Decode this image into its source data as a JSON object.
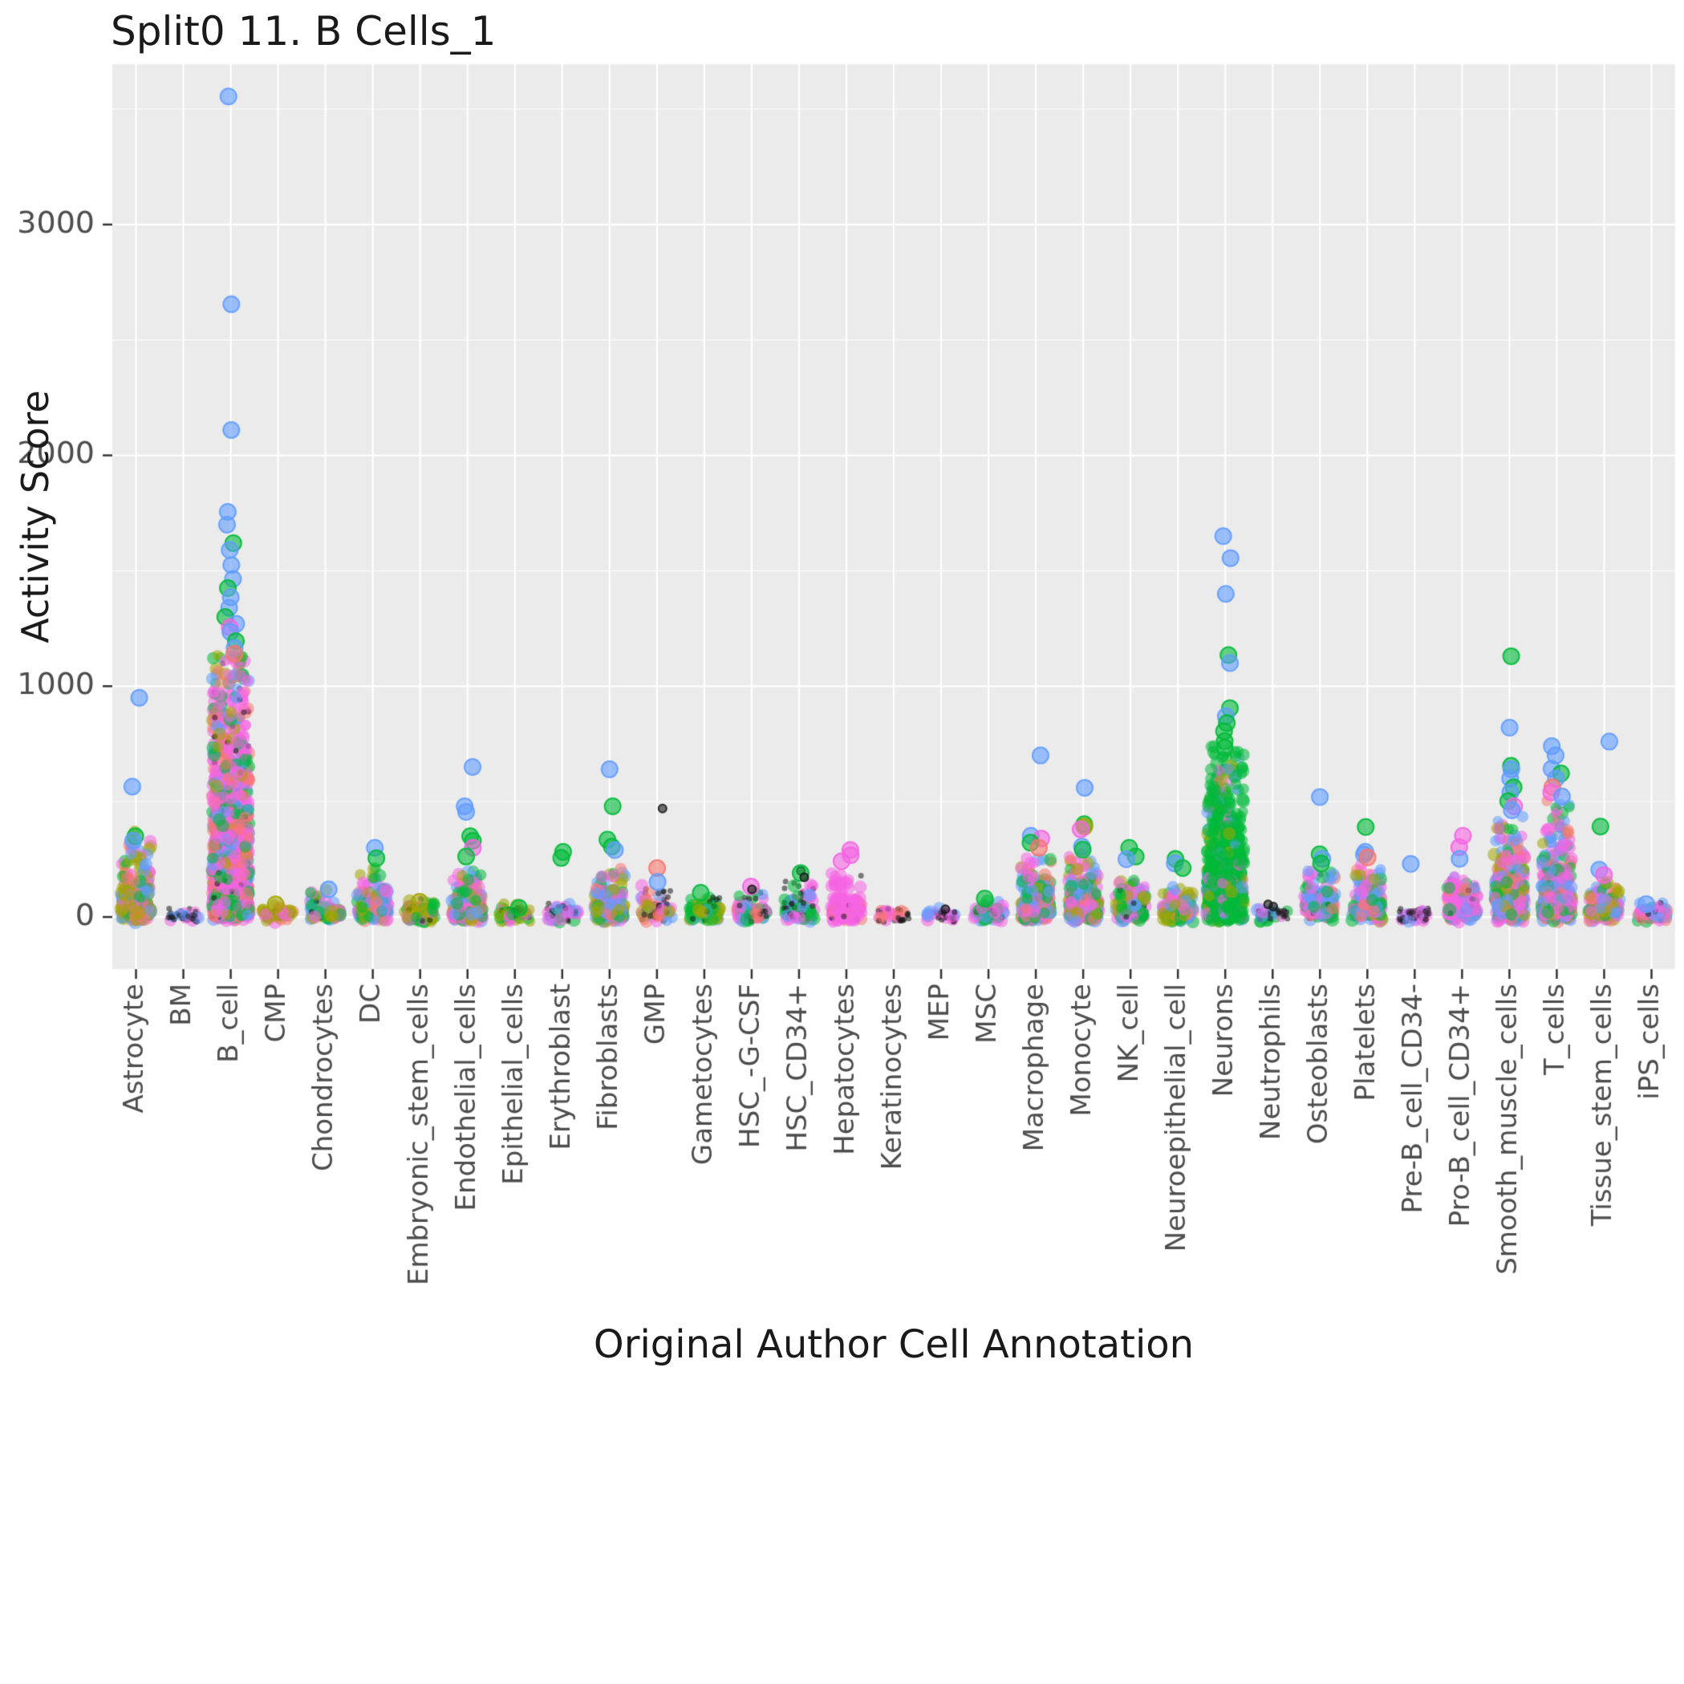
{
  "title": "Split0 11. B Cells_1",
  "x_axis_title": "Original Author Cell Annotation",
  "y_axis_title": "Activity Score",
  "colors": {
    "panel_bg": "#EBEBEB",
    "grid": "#FFFFFF",
    "axis_text": "#4D4D4D",
    "title_text": "#1A1A1A",
    "tick_mark": "#333333"
  },
  "chart_data": {
    "type": "scatter",
    "subtype": "jitter-strip",
    "title": "Split0 11. B Cells_1",
    "xlabel": "Original Author Cell Annotation",
    "ylabel": "Activity Score",
    "ylim": [
      -150,
      3700
    ],
    "yticks": [
      0,
      1000,
      2000,
      3000
    ],
    "ytick_labels": [
      "0",
      "1000",
      "2000",
      "3000"
    ],
    "yminor": [
      500,
      1500,
      2500,
      3500
    ],
    "grid": true,
    "legend": "none",
    "background": "#EBEBEB",
    "alpha": 0.55,
    "palette": {
      "salmon": "#F8766D",
      "olive": "#A3A500",
      "green": "#00BA38",
      "blue": "#619CFF",
      "magenta": "#F564E3",
      "dark": "#1A1A1A"
    },
    "categories": [
      {
        "label": "Astrocyte",
        "n": 230,
        "scale": 75,
        "max": 360,
        "colors": {
          "olive": 0.38,
          "blue": 0.22,
          "magenta": 0.16,
          "green": 0.12,
          "salmon": 0.12
        },
        "outliers": [
          [
            950,
            "blue"
          ],
          [
            565,
            "blue"
          ],
          [
            350,
            "green"
          ],
          [
            330,
            "blue"
          ]
        ]
      },
      {
        "label": "BM",
        "n": 45,
        "scale": 7,
        "max": 22,
        "colors": {
          "dark": 0.8,
          "magenta": 0.12,
          "blue": 0.08
        },
        "outliers": []
      },
      {
        "label": "B_cell",
        "n": 1250,
        "scale": 300,
        "max": 1130,
        "colors": {
          "magenta": 0.42,
          "salmon": 0.16,
          "green": 0.2,
          "blue": 0.13,
          "olive": 0.05,
          "dark": 0.04
        },
        "outliers": [
          [
            3555,
            "blue"
          ],
          [
            2655,
            "blue"
          ],
          [
            2110,
            "blue"
          ],
          [
            1755,
            "blue"
          ],
          [
            1700,
            "blue"
          ],
          [
            1620,
            "green"
          ],
          [
            1590,
            "blue"
          ],
          [
            1525,
            "blue"
          ],
          [
            1465,
            "blue"
          ],
          [
            1425,
            "green"
          ],
          [
            1385,
            "blue"
          ],
          [
            1340,
            "blue"
          ],
          [
            1300,
            "green"
          ],
          [
            1270,
            "blue"
          ],
          [
            1255,
            "magenta"
          ],
          [
            1235,
            "blue"
          ],
          [
            1195,
            "green"
          ],
          [
            1165,
            "blue"
          ],
          [
            1140,
            "salmon"
          ]
        ]
      },
      {
        "label": "CMP",
        "n": 55,
        "scale": 14,
        "max": 42,
        "colors": {
          "olive": 0.55,
          "dark": 0.2,
          "salmon": 0.12,
          "magenta": 0.13
        },
        "outliers": [
          [
            55,
            "olive"
          ]
        ]
      },
      {
        "label": "Chondrocytes",
        "n": 95,
        "scale": 32,
        "max": 105,
        "colors": {
          "olive": 0.28,
          "green": 0.2,
          "blue": 0.2,
          "magenta": 0.2,
          "dark": 0.12
        },
        "outliers": [
          [
            120,
            "blue"
          ]
        ]
      },
      {
        "label": "DC",
        "n": 130,
        "scale": 55,
        "max": 210,
        "colors": {
          "blue": 0.3,
          "green": 0.24,
          "magenta": 0.2,
          "olive": 0.16,
          "salmon": 0.1
        },
        "outliers": [
          [
            300,
            "blue"
          ],
          [
            255,
            "green"
          ]
        ]
      },
      {
        "label": "Embryonic_stem_cells",
        "n": 110,
        "scale": 18,
        "max": 58,
        "colors": {
          "olive": 0.5,
          "green": 0.24,
          "dark": 0.14,
          "magenta": 0.12
        },
        "outliers": [
          [
            66,
            "olive"
          ]
        ]
      },
      {
        "label": "Endothelial_cells",
        "n": 160,
        "scale": 48,
        "max": 190,
        "colors": {
          "magenta": 0.3,
          "blue": 0.24,
          "green": 0.2,
          "salmon": 0.16,
          "olive": 0.1
        },
        "outliers": [
          [
            650,
            "blue"
          ],
          [
            480,
            "blue"
          ],
          [
            455,
            "blue"
          ],
          [
            350,
            "green"
          ],
          [
            330,
            "green"
          ],
          [
            300,
            "magenta"
          ],
          [
            262,
            "green"
          ]
        ]
      },
      {
        "label": "Epithelial_cells",
        "n": 65,
        "scale": 11,
        "max": 34,
        "colors": {
          "green": 0.4,
          "dark": 0.28,
          "olive": 0.2,
          "magenta": 0.12
        },
        "outliers": [
          [
            40,
            "green"
          ]
        ]
      },
      {
        "label": "Erythroblast",
        "n": 75,
        "scale": 14,
        "max": 46,
        "colors": {
          "dark": 0.38,
          "magenta": 0.22,
          "green": 0.2,
          "blue": 0.2
        },
        "outliers": [
          [
            282,
            "green"
          ],
          [
            256,
            "green"
          ]
        ]
      },
      {
        "label": "Fibroblasts",
        "n": 170,
        "scale": 52,
        "max": 195,
        "colors": {
          "blue": 0.3,
          "green": 0.24,
          "magenta": 0.2,
          "olive": 0.16,
          "salmon": 0.1
        },
        "outliers": [
          [
            640,
            "blue"
          ],
          [
            480,
            "green"
          ],
          [
            335,
            "green"
          ],
          [
            305,
            "green"
          ],
          [
            290,
            "blue"
          ]
        ]
      },
      {
        "label": "GMP",
        "n": 85,
        "scale": 32,
        "max": 115,
        "colors": {
          "dark": 0.28,
          "blue": 0.24,
          "magenta": 0.2,
          "salmon": 0.16,
          "olive": 0.12
        },
        "outliers": [
          [
            470,
            "dark"
          ],
          [
            212,
            "salmon"
          ],
          [
            152,
            "blue"
          ]
        ]
      },
      {
        "label": "Gametocytes",
        "n": 75,
        "scale": 24,
        "max": 78,
        "colors": {
          "green": 0.38,
          "olive": 0.3,
          "dark": 0.16,
          "blue": 0.16
        },
        "outliers": [
          [
            105,
            "green"
          ]
        ]
      },
      {
        "label": "HSC_-G-CSF",
        "n": 95,
        "scale": 28,
        "max": 98,
        "colors": {
          "magenta": 0.3,
          "dark": 0.24,
          "green": 0.2,
          "blue": 0.16,
          "salmon": 0.1
        },
        "outliers": [
          [
            132,
            "magenta"
          ],
          [
            120,
            "dark"
          ]
        ]
      },
      {
        "label": "HSC_CD34+",
        "n": 105,
        "scale": 38,
        "max": 145,
        "colors": {
          "dark": 0.34,
          "green": 0.24,
          "blue": 0.2,
          "magenta": 0.22
        },
        "outliers": [
          [
            200,
            "dark"
          ],
          [
            190,
            "green"
          ],
          [
            172,
            "dark"
          ]
        ]
      },
      {
        "label": "Hepatocytes",
        "n": 140,
        "scale": 58,
        "max": 198,
        "colors": {
          "magenta": 0.8,
          "salmon": 0.1,
          "dark": 0.1
        },
        "outliers": [
          [
            290,
            "magenta"
          ],
          [
            268,
            "magenta"
          ],
          [
            242,
            "magenta"
          ]
        ]
      },
      {
        "label": "Keratinocytes",
        "n": 42,
        "scale": 7,
        "max": 22,
        "colors": {
          "dark": 0.5,
          "magenta": 0.3,
          "salmon": 0.2
        },
        "outliers": []
      },
      {
        "label": "MEP",
        "n": 42,
        "scale": 9,
        "max": 28,
        "colors": {
          "dark": 0.58,
          "magenta": 0.22,
          "blue": 0.2
        },
        "outliers": [
          [
            34,
            "dark"
          ]
        ]
      },
      {
        "label": "MSC",
        "n": 65,
        "scale": 18,
        "max": 66,
        "colors": {
          "green": 0.3,
          "dark": 0.24,
          "magenta": 0.26,
          "blue": 0.2
        },
        "outliers": [
          [
            80,
            "green"
          ]
        ]
      },
      {
        "label": "Macrophage",
        "n": 210,
        "scale": 68,
        "max": 255,
        "colors": {
          "magenta": 0.3,
          "blue": 0.24,
          "green": 0.2,
          "salmon": 0.16,
          "olive": 0.1
        },
        "outliers": [
          [
            700,
            "blue"
          ],
          [
            352,
            "blue"
          ],
          [
            340,
            "magenta"
          ],
          [
            322,
            "green"
          ],
          [
            300,
            "salmon"
          ]
        ]
      },
      {
        "label": "Monocyte",
        "n": 230,
        "scale": 68,
        "max": 255,
        "colors": {
          "magenta": 0.3,
          "blue": 0.24,
          "green": 0.2,
          "olive": 0.16,
          "salmon": 0.1
        },
        "outliers": [
          [
            560,
            "blue"
          ],
          [
            402,
            "green"
          ],
          [
            392,
            "olive"
          ],
          [
            380,
            "magenta"
          ],
          [
            305,
            "blue"
          ],
          [
            292,
            "green"
          ]
        ]
      },
      {
        "label": "NK_cell",
        "n": 140,
        "scale": 42,
        "max": 155,
        "colors": {
          "blue": 0.3,
          "magenta": 0.24,
          "green": 0.2,
          "olive": 0.16,
          "dark": 0.1
        },
        "outliers": [
          [
            300,
            "green"
          ],
          [
            262,
            "green"
          ],
          [
            250,
            "blue"
          ]
        ]
      },
      {
        "label": "Neuroepithelial_cell",
        "n": 125,
        "scale": 38,
        "max": 135,
        "colors": {
          "olive": 0.3,
          "green": 0.24,
          "blue": 0.2,
          "magenta": 0.16,
          "salmon": 0.1
        },
        "outliers": [
          [
            252,
            "green"
          ],
          [
            232,
            "blue"
          ],
          [
            212,
            "green"
          ]
        ]
      },
      {
        "label": "Neurons",
        "n": 720,
        "scale": 200,
        "max": 730,
        "colors": {
          "green": 0.74,
          "blue": 0.1,
          "olive": 0.09,
          "magenta": 0.07
        },
        "outliers": [
          [
            1650,
            "blue"
          ],
          [
            1555,
            "blue"
          ],
          [
            1400,
            "blue"
          ],
          [
            1135,
            "green"
          ],
          [
            1100,
            "blue"
          ],
          [
            905,
            "green"
          ],
          [
            870,
            "blue"
          ],
          [
            840,
            "green"
          ],
          [
            805,
            "green"
          ],
          [
            762,
            "green"
          ],
          [
            733,
            "green"
          ]
        ]
      },
      {
        "label": "Neutrophils",
        "n": 45,
        "scale": 9,
        "max": 28,
        "colors": {
          "dark": 0.5,
          "green": 0.2,
          "blue": 0.15,
          "magenta": 0.15
        },
        "outliers": [
          [
            55,
            "dark"
          ],
          [
            45,
            "dark"
          ]
        ]
      },
      {
        "label": "Osteoblasts",
        "n": 150,
        "scale": 52,
        "max": 195,
        "colors": {
          "blue": 0.3,
          "green": 0.24,
          "magenta": 0.2,
          "salmon": 0.16,
          "dark": 0.1
        },
        "outliers": [
          [
            520,
            "blue"
          ],
          [
            272,
            "green"
          ],
          [
            252,
            "blue"
          ],
          [
            232,
            "green"
          ]
        ]
      },
      {
        "label": "Platelets",
        "n": 130,
        "scale": 56,
        "max": 225,
        "colors": {
          "magenta": 0.3,
          "blue": 0.24,
          "green": 0.2,
          "salmon": 0.16,
          "olive": 0.1
        },
        "outliers": [
          [
            390,
            "green"
          ],
          [
            282,
            "blue"
          ],
          [
            270,
            "blue"
          ],
          [
            258,
            "salmon"
          ]
        ]
      },
      {
        "label": "Pre-B_cell_CD34-",
        "n": 55,
        "scale": 9,
        "max": 26,
        "colors": {
          "dark": 0.7,
          "magenta": 0.18,
          "blue": 0.12
        },
        "outliers": [
          [
            230,
            "blue"
          ]
        ]
      },
      {
        "label": "Pro-B_cell_CD34+",
        "n": 130,
        "scale": 52,
        "max": 195,
        "colors": {
          "magenta": 0.44,
          "blue": 0.2,
          "salmon": 0.14,
          "green": 0.12,
          "dark": 0.1
        },
        "outliers": [
          [
            352,
            "magenta"
          ],
          [
            302,
            "magenta"
          ],
          [
            252,
            "blue"
          ]
        ]
      },
      {
        "label": "Smooth_muscle_cells",
        "n": 300,
        "scale": 105,
        "max": 415,
        "colors": {
          "magenta": 0.3,
          "green": 0.24,
          "blue": 0.24,
          "salmon": 0.12,
          "olive": 0.1
        },
        "outliers": [
          [
            1130,
            "green"
          ],
          [
            820,
            "blue"
          ],
          [
            655,
            "green"
          ],
          [
            640,
            "blue"
          ],
          [
            600,
            "blue"
          ],
          [
            562,
            "green"
          ],
          [
            540,
            "blue"
          ],
          [
            502,
            "green"
          ],
          [
            480,
            "magenta"
          ],
          [
            462,
            "blue"
          ]
        ]
      },
      {
        "label": "T_cells",
        "n": 340,
        "scale": 125,
        "max": 495,
        "colors": {
          "magenta": 0.3,
          "blue": 0.28,
          "green": 0.2,
          "salmon": 0.16,
          "olive": 0.06
        },
        "outliers": [
          [
            740,
            "blue"
          ],
          [
            700,
            "blue"
          ],
          [
            642,
            "blue"
          ],
          [
            622,
            "green"
          ],
          [
            600,
            "blue"
          ],
          [
            562,
            "salmon"
          ],
          [
            540,
            "magenta"
          ],
          [
            522,
            "blue"
          ]
        ]
      },
      {
        "label": "Tissue_stem_cells",
        "n": 115,
        "scale": 38,
        "max": 148,
        "colors": {
          "magenta": 0.3,
          "blue": 0.24,
          "green": 0.2,
          "olive": 0.16,
          "salmon": 0.1
        },
        "outliers": [
          [
            760,
            "blue"
          ],
          [
            392,
            "green"
          ],
          [
            205,
            "blue"
          ],
          [
            182,
            "magenta"
          ]
        ]
      },
      {
        "label": "iPS_cells",
        "n": 75,
        "scale": 14,
        "max": 44,
        "colors": {
          "blue": 0.3,
          "magenta": 0.24,
          "salmon": 0.2,
          "dark": 0.16,
          "green": 0.1
        },
        "outliers": [
          [
            56,
            "blue"
          ]
        ]
      }
    ]
  }
}
